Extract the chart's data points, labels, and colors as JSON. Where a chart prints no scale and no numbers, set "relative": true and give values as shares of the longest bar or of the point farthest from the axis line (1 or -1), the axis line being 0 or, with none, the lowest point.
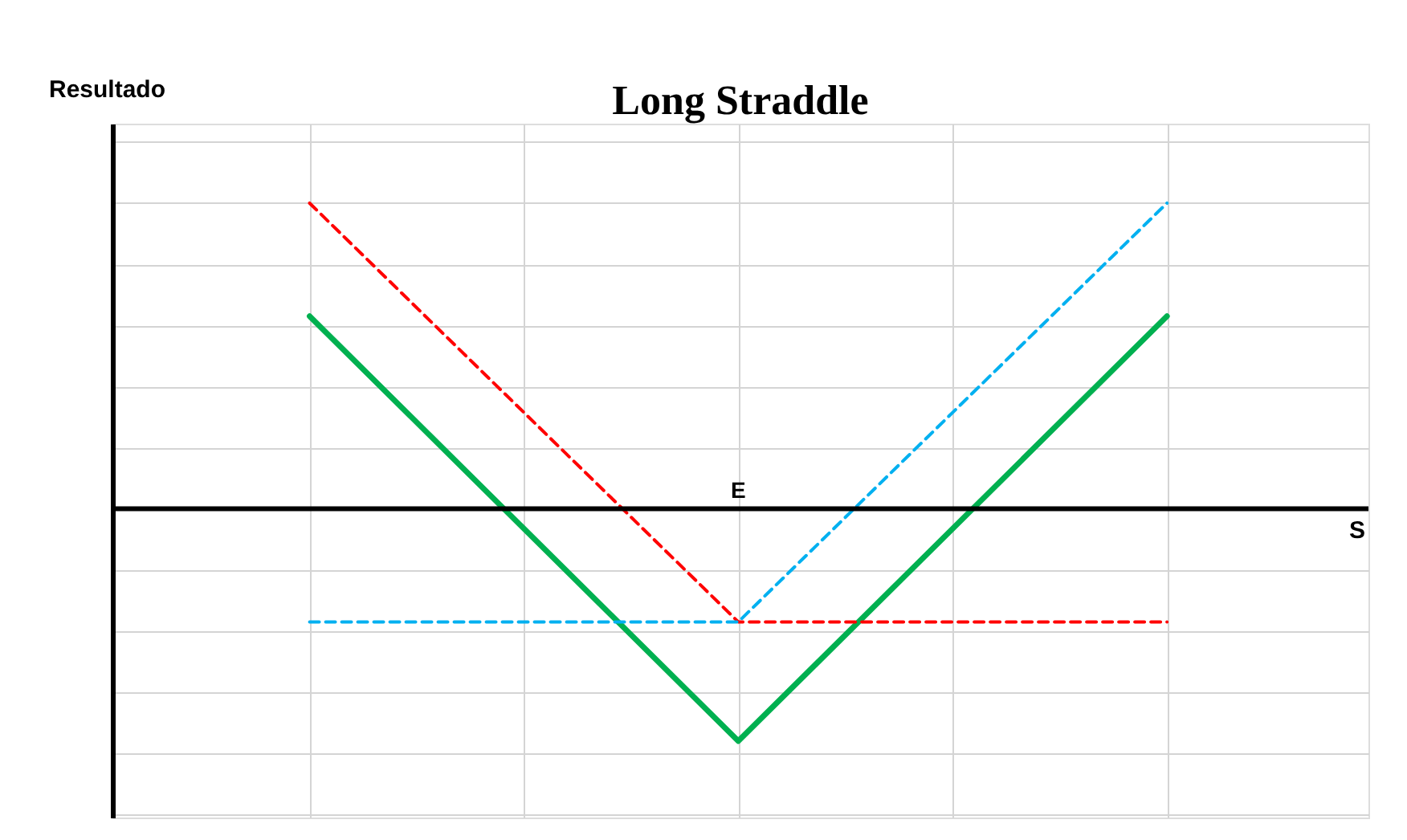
{
  "chart_data": {
    "type": "line",
    "title": "Long Straddle",
    "xlabel": "S",
    "ylabel": "Resultado",
    "annotations": [
      "E"
    ],
    "relative": true,
    "grid": true,
    "categories": [
      null,
      null,
      null
    ],
    "series": [
      {
        "color": "#00b050",
        "line_style": "solid",
        "values": [
          0.63,
          -0.76,
          0.63
        ]
      },
      {
        "color": "#ff0000",
        "line_style": "dashed",
        "values": [
          1,
          -0.37,
          -0.37
        ]
      },
      {
        "color": "#00b0f0",
        "line_style": "dashed",
        "values": [
          -0.37,
          -0.37,
          1
        ]
      }
    ]
  }
}
